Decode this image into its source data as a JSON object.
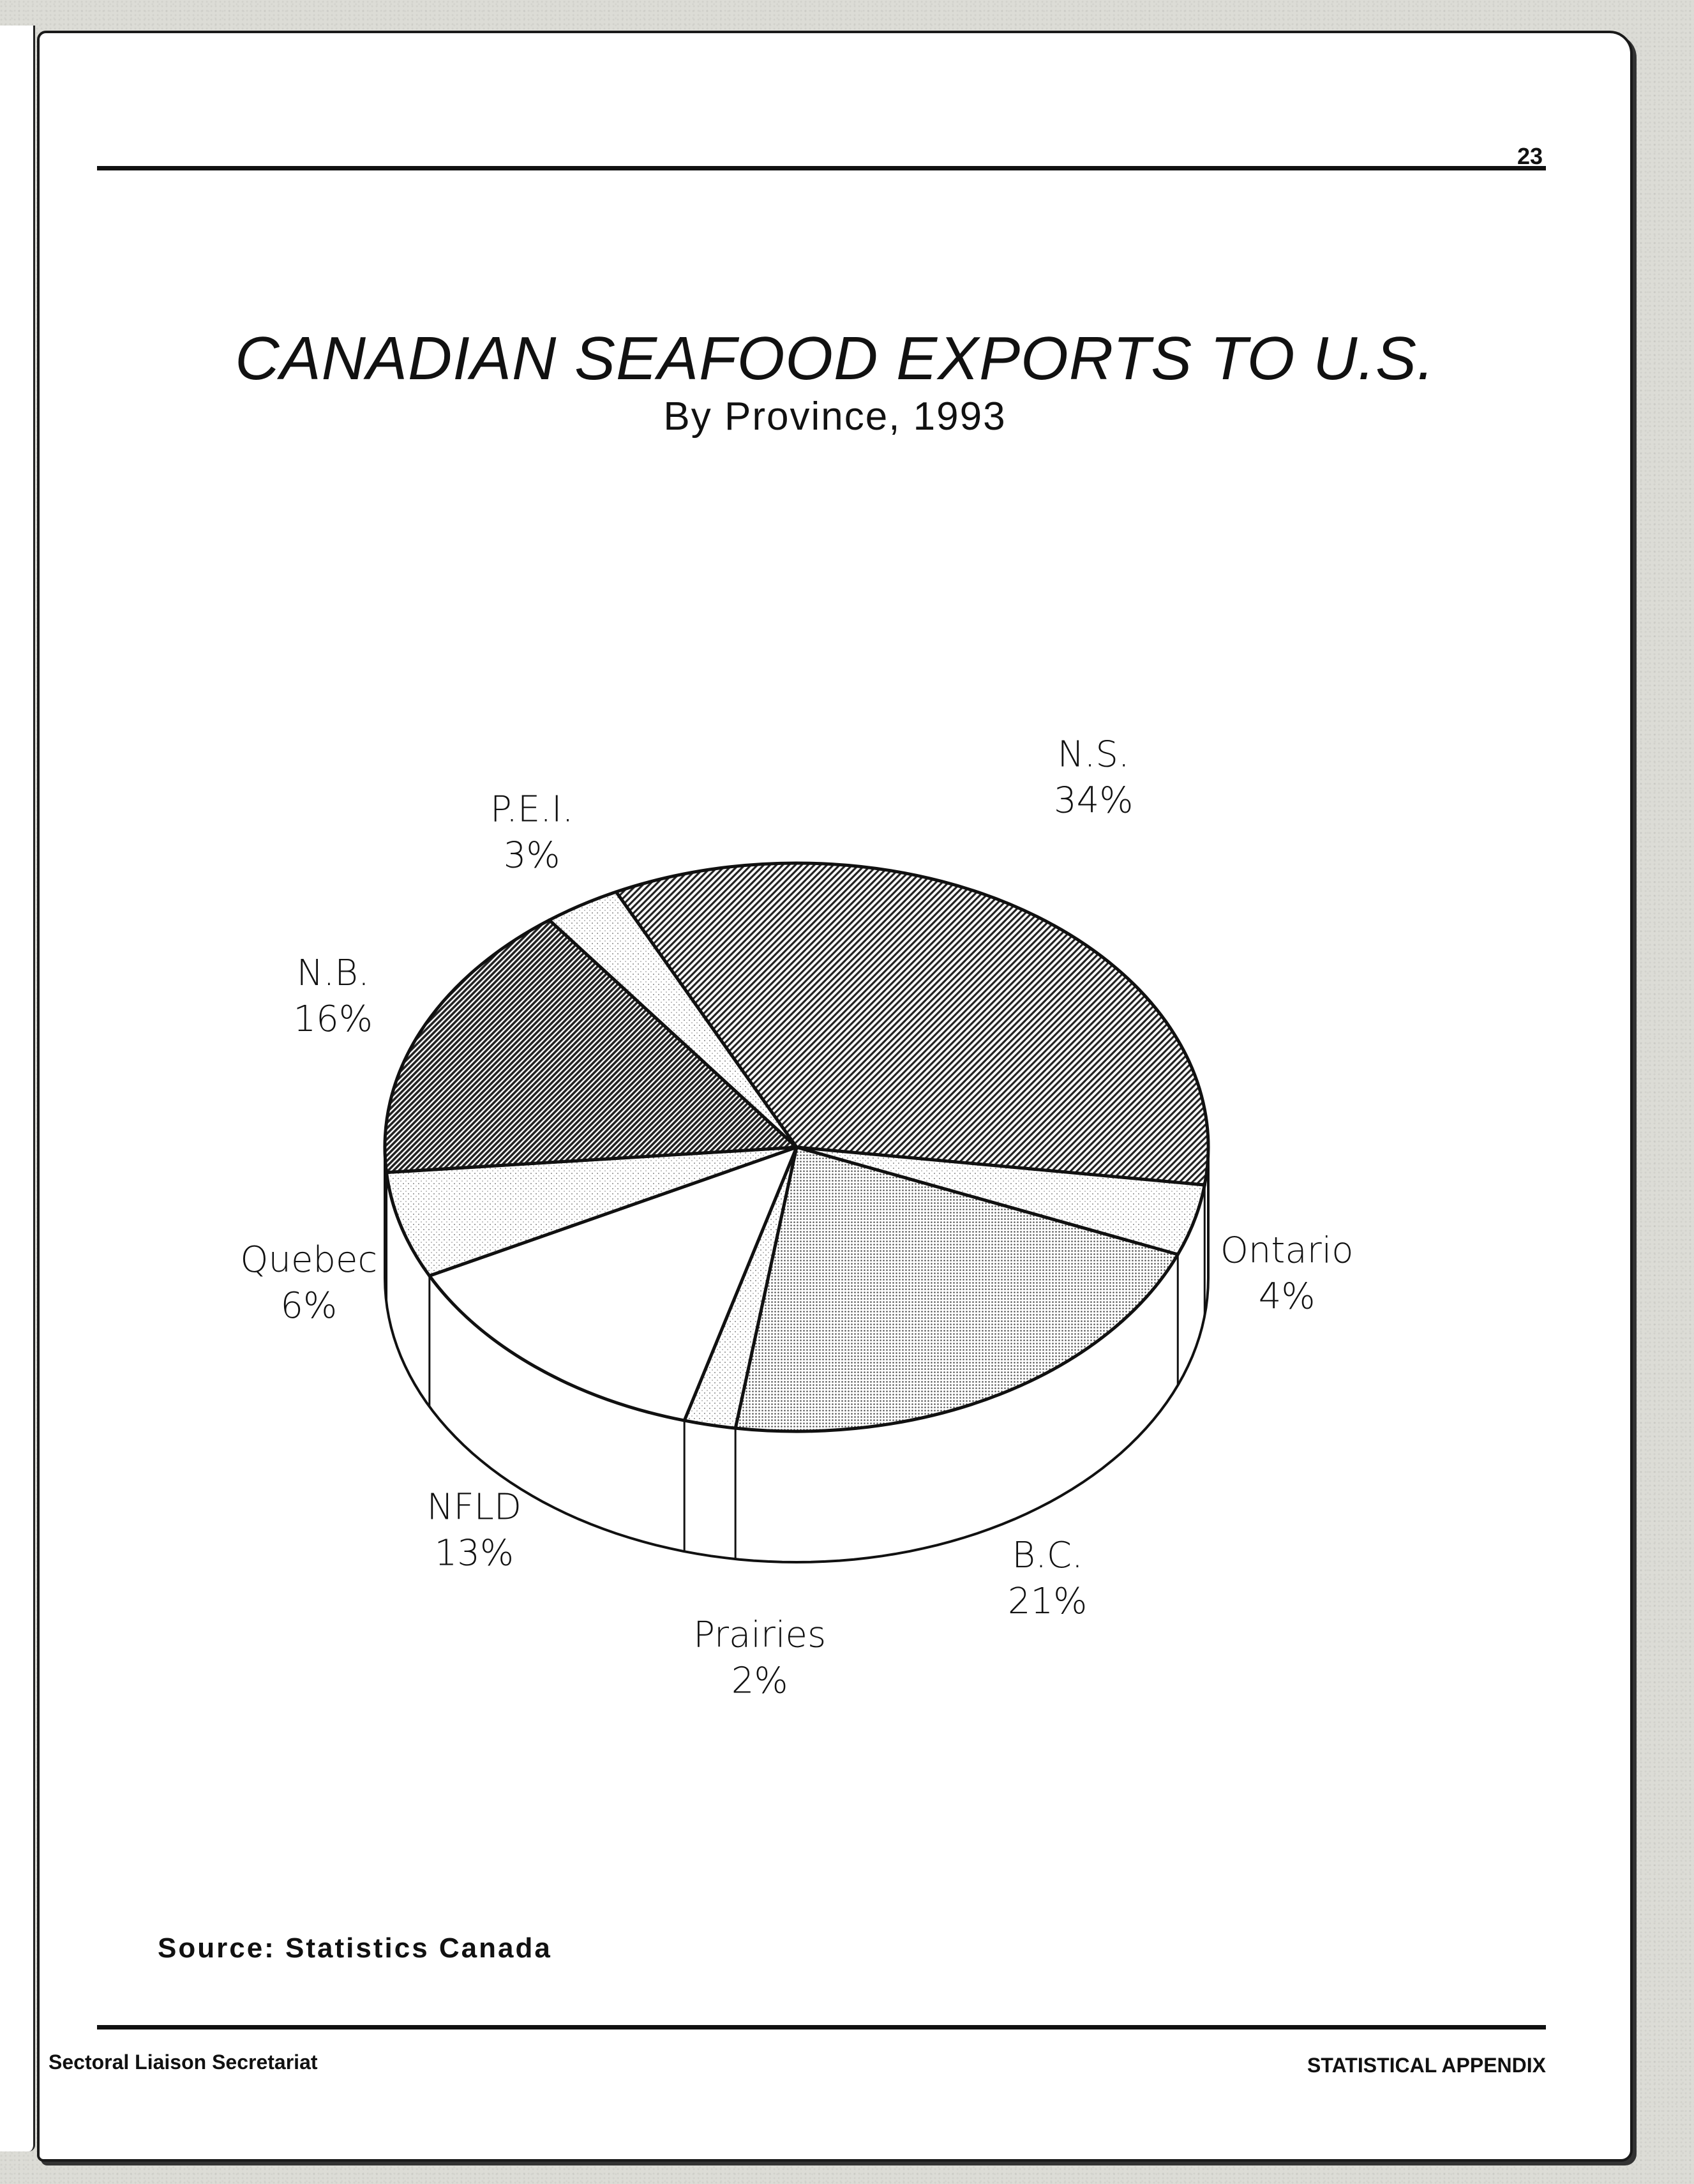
{
  "page": {
    "number": "23",
    "source": "Source: Statistics Canada",
    "footer_left": "Sectoral Liaison Secretariat",
    "footer_right": "STATISTICAL APPENDIX"
  },
  "chart_data": {
    "type": "pie",
    "title": "CANADIAN SEAFOOD EXPORTS TO U.S.",
    "subtitle": "By Province, 1993",
    "unit": "%",
    "slices": [
      {
        "label": "N.S.",
        "value": 34,
        "value_label": "34%",
        "pattern": "diagonal-hatch"
      },
      {
        "label": "Ontario",
        "value": 4,
        "value_label": "4%",
        "pattern": "light-dots"
      },
      {
        "label": "B.C.",
        "value": 21,
        "value_label": "21%",
        "pattern": "dense-dots"
      },
      {
        "label": "Prairies",
        "value": 2,
        "value_label": "2%",
        "pattern": "light-dots"
      },
      {
        "label": "NFLD",
        "value": 13,
        "value_label": "13%",
        "pattern": "plain"
      },
      {
        "label": "Quebec",
        "value": 6,
        "value_label": "6%",
        "pattern": "light-dots"
      },
      {
        "label": "N.B.",
        "value": 16,
        "value_label": "16%",
        "pattern": "dense-hatch"
      },
      {
        "label": "P.E.I.",
        "value": 3,
        "value_label": "3%",
        "pattern": "light-dots"
      }
    ],
    "style": "3d-pie"
  }
}
